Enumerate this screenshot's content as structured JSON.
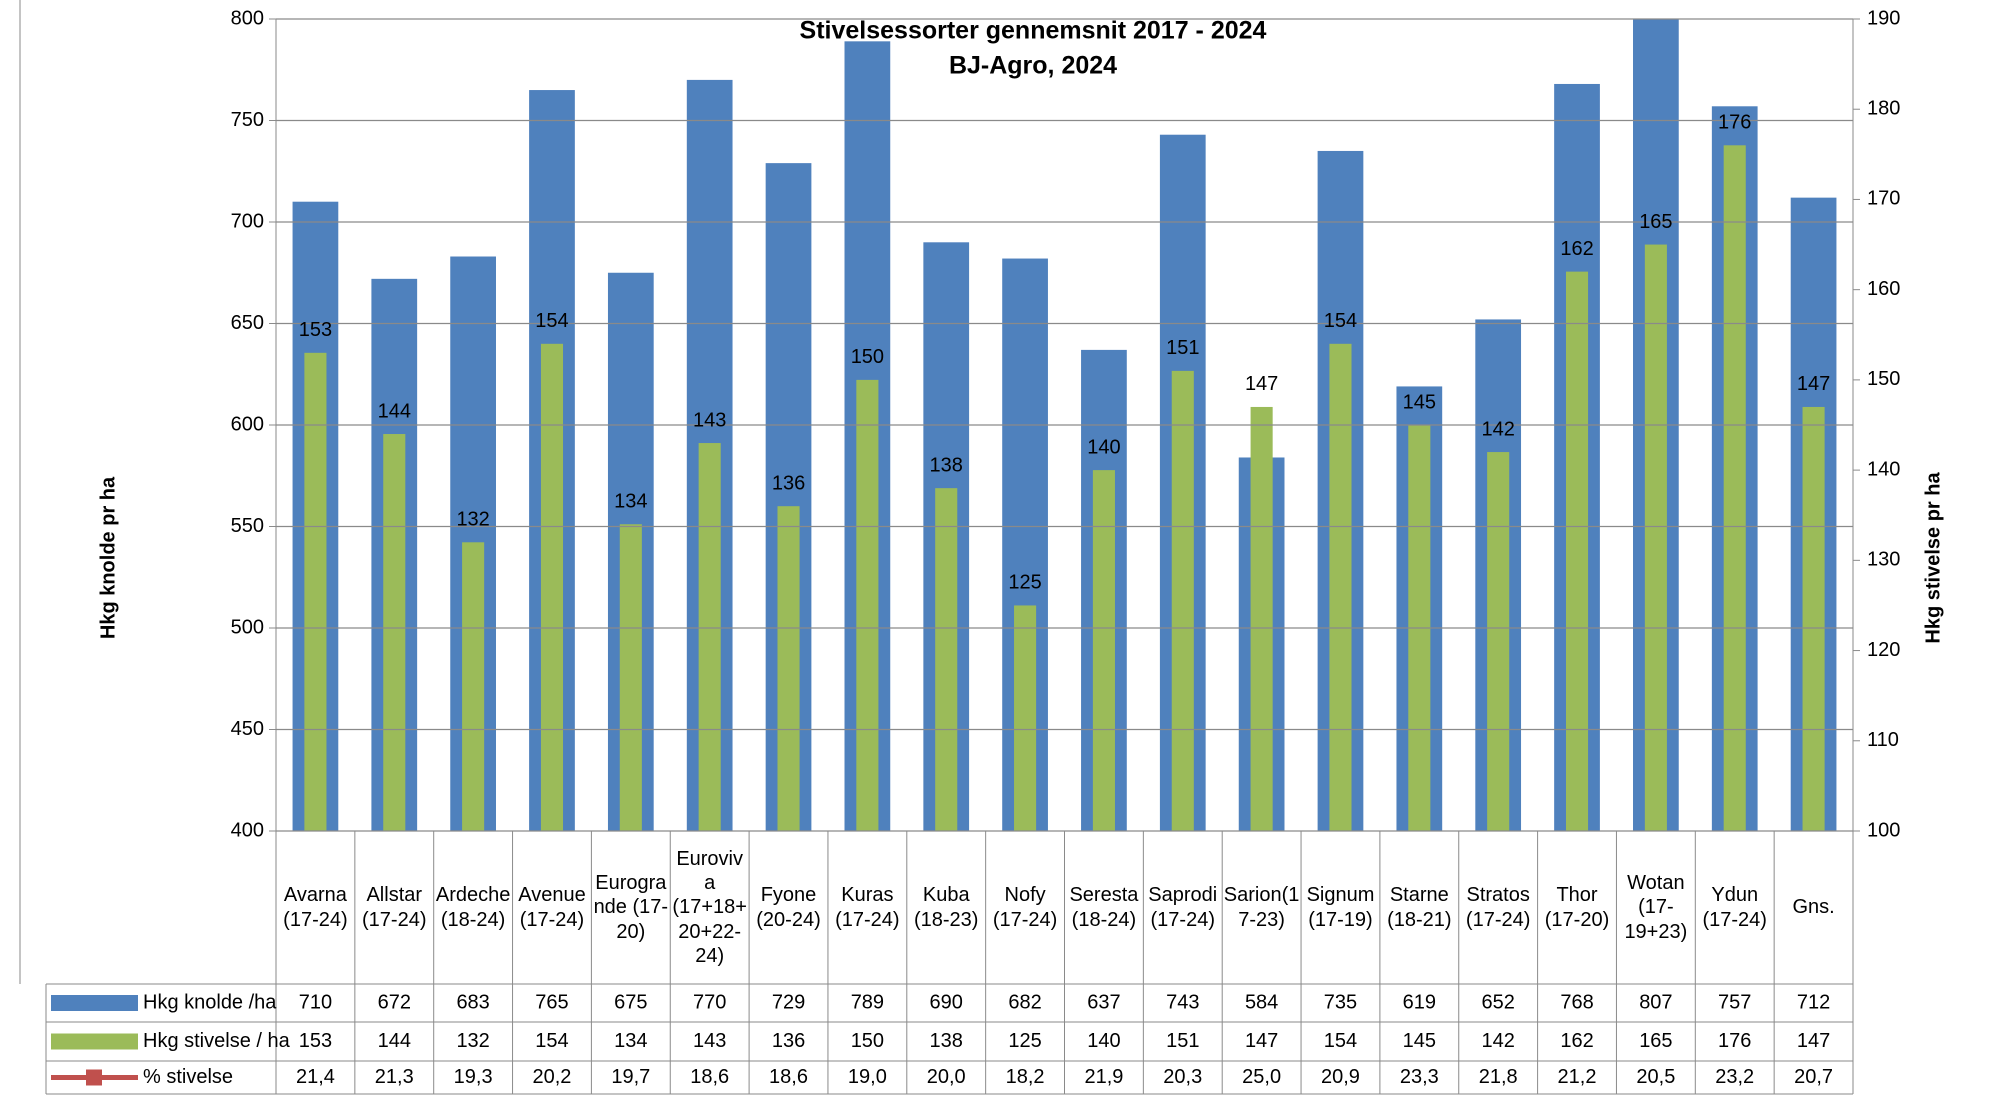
{
  "chart_data": {
    "type": "bar",
    "title": "Stivelsessorter gennemsnit 2017 - 2024",
    "subtitle": "BJ-Agro, 2024",
    "ylabel": "Hkg knolde pr ha",
    "y2label": "Hkg stivelse pr ha",
    "categories": [
      "Avarna (17-24)",
      "Allstar (17-24)",
      "Ardeche (18-24)",
      "Avenue (17-24)",
      "Eurogrande (17-20)",
      "Euroviva (17+18+20+22-24)",
      "Fyone (20-24)",
      "Kuras (17-24)",
      "Kuba (18-23)",
      "Nofy (17-24)",
      "Seresta (18-24)",
      "Saprodi (17-24)",
      "Sarion(17-23)",
      "Signum (17-19)",
      "Starne (18-21)",
      "Stratos (17-24)",
      "Thor (17-20)",
      "Wotan (17-19+23)",
      "Ydun (17-24)",
      "Gns."
    ],
    "series": [
      {
        "name": "Hkg knolde /ha",
        "color": "#4f81bd",
        "axis": "y",
        "values": [
          710,
          672,
          683,
          765,
          675,
          770,
          729,
          789,
          690,
          682,
          637,
          743,
          584,
          735,
          619,
          652,
          768,
          807,
          757,
          712
        ]
      },
      {
        "name": "Hkg stivelse / ha",
        "color": "#9bbb59",
        "axis": "y2",
        "data_labels": true,
        "values": [
          153,
          144,
          132,
          154,
          134,
          143,
          136,
          150,
          138,
          125,
          140,
          151,
          147,
          154,
          145,
          142,
          162,
          165,
          176,
          147
        ]
      },
      {
        "name": "% stivelse",
        "color": "#c0504d",
        "marker": "square",
        "values": [
          21.4,
          21.3,
          19.3,
          20.2,
          19.7,
          18.6,
          18.6,
          19.0,
          20.0,
          18.2,
          21.9,
          20.3,
          25.0,
          20.9,
          23.3,
          21.8,
          21.2,
          20.5,
          23.2,
          20.7
        ],
        "value_labels": [
          "21,4",
          "21,3",
          "19,3",
          "20,2",
          "19,7",
          "18,6",
          "18,6",
          "19,0",
          "20,0",
          "18,2",
          "21,9",
          "20,3",
          "25,0",
          "20,9",
          "23,3",
          "21,8",
          "21,2",
          "20,5",
          "23,2",
          "20,7"
        ]
      }
    ],
    "ylim": [
      400,
      800
    ],
    "yticks": [
      400,
      450,
      500,
      550,
      600,
      650,
      700,
      750,
      800
    ],
    "y2lim": [
      100,
      190
    ],
    "y2ticks": [
      100,
      110,
      120,
      130,
      140,
      150,
      160,
      170,
      180,
      190
    ],
    "grid": true
  }
}
